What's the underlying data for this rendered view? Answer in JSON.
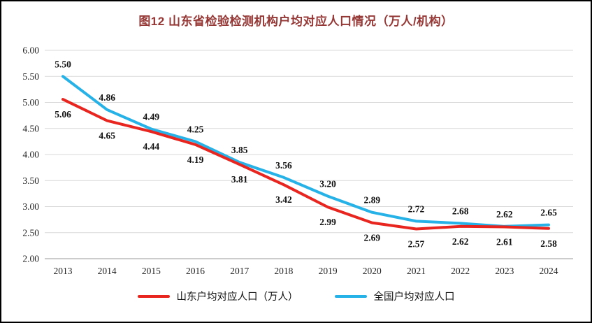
{
  "chart_data": {
    "type": "line",
    "title": "图12 山东省检验检测机构户均对应人口情况（万人/机构）",
    "title_color": "#953735",
    "categories": [
      "2013",
      "2014",
      "2015",
      "2016",
      "2017",
      "2018",
      "2019",
      "2020",
      "2021",
      "2022",
      "2023",
      "2024"
    ],
    "series": [
      {
        "name": "山东户均对应人口（万人）",
        "color": "#e8251f",
        "label_position": "below",
        "values": [
          5.06,
          4.65,
          4.44,
          4.19,
          3.81,
          3.42,
          2.99,
          2.69,
          2.57,
          2.62,
          2.61,
          2.58
        ]
      },
      {
        "name": "全国户均对应人口",
        "color": "#27b2e7",
        "label_position": "above",
        "values": [
          5.5,
          4.86,
          4.49,
          4.25,
          3.85,
          3.56,
          3.2,
          2.89,
          2.72,
          2.68,
          2.62,
          2.65
        ]
      }
    ],
    "ylim": [
      2.0,
      6.0
    ],
    "ytick_step": 0.5,
    "ytick_labels": [
      "6.00",
      "5.50",
      "5.00",
      "4.50",
      "4.00",
      "3.50",
      "3.00",
      "2.50",
      "2.00"
    ],
    "grid": true,
    "legend_position": "bottom"
  }
}
